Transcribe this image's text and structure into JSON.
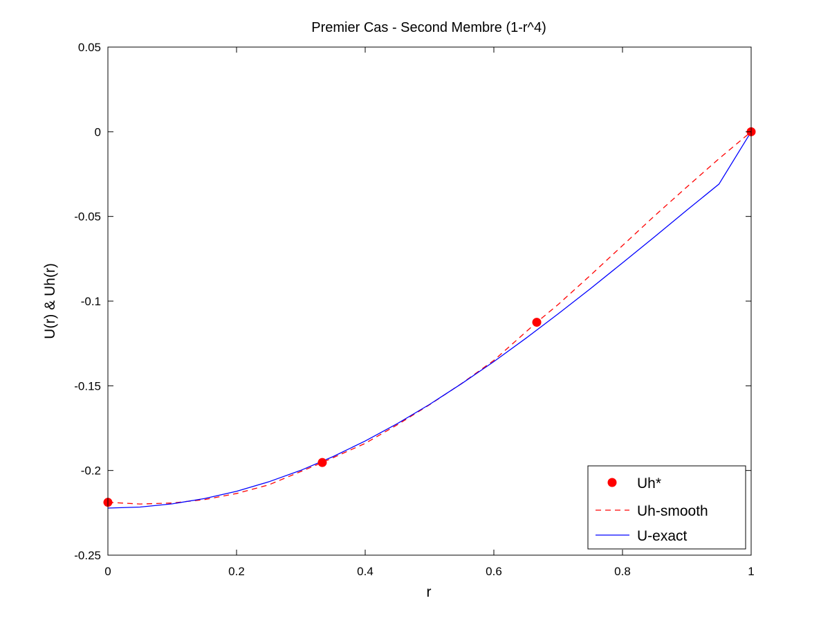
{
  "chart_data": {
    "type": "line",
    "title": "Premier Cas - Second Membre (1-r^4)",
    "xlabel": "r",
    "ylabel": "U(r) & Uh(r)",
    "xlim": [
      0,
      1
    ],
    "ylim": [
      -0.25,
      0.05
    ],
    "xticks": [
      0,
      0.2,
      0.4,
      0.6,
      0.8,
      1
    ],
    "xtick_labels": [
      "0",
      "0.2",
      "0.4",
      "0.6",
      "0.8",
      "1"
    ],
    "yticks": [
      -0.25,
      -0.2,
      -0.15,
      -0.1,
      -0.05,
      0,
      0.05
    ],
    "ytick_labels": [
      "-0.25",
      "-0.2",
      "-0.15",
      "-0.1",
      "-0.05",
      "0",
      "0.05"
    ],
    "grid": false,
    "legend_position": "bottom-right",
    "series": [
      {
        "name": "Uh*",
        "style": "markers",
        "color": "#ff0000",
        "x": [
          0,
          0.3333,
          0.6667,
          1
        ],
        "y": [
          -0.2188,
          -0.1953,
          -0.1125,
          0
        ]
      },
      {
        "name": "Uh-smooth",
        "style": "dashed",
        "color": "#ff0000",
        "x": [
          0,
          0.05,
          0.1,
          0.15,
          0.2,
          0.25,
          0.3,
          0.3333,
          0.4,
          0.45,
          0.5,
          0.55,
          0.6,
          0.6667,
          0.7,
          0.75,
          0.8,
          0.85,
          0.9,
          0.95,
          1
        ],
        "y": [
          -0.2188,
          -0.2198,
          -0.2192,
          -0.2172,
          -0.2136,
          -0.2085,
          -0.2006,
          -0.1953,
          -0.184,
          -0.173,
          -0.1612,
          -0.1486,
          -0.135,
          -0.1125,
          -0.102,
          -0.0848,
          -0.0672,
          -0.0496,
          -0.0326,
          -0.0159,
          0
        ]
      },
      {
        "name": "U-exact",
        "style": "solid",
        "color": "#0000ff",
        "x": [
          0,
          0.05,
          0.1,
          0.15,
          0.2,
          0.25,
          0.3,
          0.35,
          0.4,
          0.45,
          0.5,
          0.55,
          0.6,
          0.65,
          0.7,
          0.75,
          0.8,
          0.85,
          0.9,
          0.95,
          1
        ],
        "y": [
          -0.2222,
          -0.2216,
          -0.2197,
          -0.2166,
          -0.2123,
          -0.2067,
          -0.1999,
          -0.1918,
          -0.1826,
          -0.1723,
          -0.161,
          -0.1487,
          -0.1357,
          -0.1219,
          -0.1075,
          -0.0927,
          -0.0774,
          -0.062,
          -0.0463,
          -0.0309,
          0
        ]
      }
    ]
  }
}
